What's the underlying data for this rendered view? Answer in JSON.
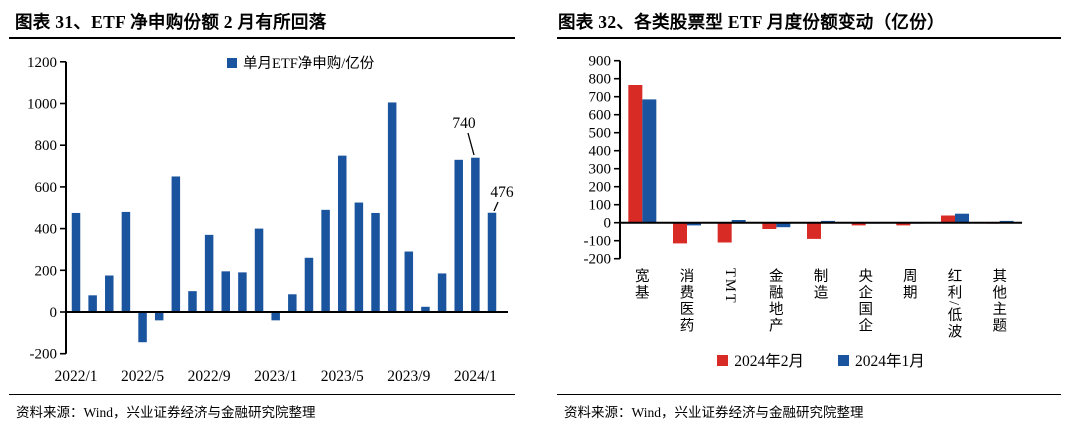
{
  "figures": [
    {
      "title": "图表 31、ETF 净申购份额 2 月有所回落",
      "source": "资料来源：Wind，兴业证券经济与金融研究院整理"
    },
    {
      "title": "图表 32、各类股票型 ETF 月度份额变动（亿份）",
      "source": "资料来源：Wind，兴业证券经济与金融研究院整理"
    }
  ],
  "colors": {
    "bar_blue": "#1A549E",
    "bar_red": "#D92B26",
    "axis": "#000000"
  },
  "chart_data": [
    {
      "type": "bar",
      "title": "ETF 净申购份额 2 月有所回落",
      "legend_label": "单月ETF净申购/亿份",
      "legend_position": "top",
      "unit": "亿份",
      "grid": false,
      "x": [
        "2022/1",
        "2022/2",
        "2022/3",
        "2022/4",
        "2022/5",
        "2022/6",
        "2022/7",
        "2022/8",
        "2022/9",
        "2022/10",
        "2022/11",
        "2022/12",
        "2023/1",
        "2023/2",
        "2023/3",
        "2023/4",
        "2023/5",
        "2023/6",
        "2023/7",
        "2023/8",
        "2023/9",
        "2023/10",
        "2023/11",
        "2023/12",
        "2024/1",
        "2024/2"
      ],
      "values": [
        475,
        80,
        175,
        480,
        -145,
        -40,
        650,
        100,
        370,
        195,
        190,
        400,
        -40,
        85,
        260,
        490,
        750,
        525,
        475,
        1005,
        290,
        25,
        185,
        730,
        740,
        476
      ],
      "xticks_shown": [
        "2022/1",
        "2022/5",
        "2022/9",
        "2023/1",
        "2023/5",
        "2023/9",
        "2024/1"
      ],
      "ylim": [
        -200,
        1200
      ],
      "ytick_step": 200,
      "bar_color": "#1A549E",
      "annotations": [
        {
          "x": "2024/1",
          "label": "740"
        },
        {
          "x": "2024/2",
          "label": "476"
        }
      ]
    },
    {
      "type": "bar",
      "title": "各类股票型 ETF 月度份额变动（亿份）",
      "legend_position": "bottom",
      "unit": "亿份",
      "grid": false,
      "categories": [
        "宽基",
        "消费医药",
        "TMT",
        "金融地产",
        "制造",
        "央企国企",
        "周期",
        "红利/低波",
        "其他主题"
      ],
      "series": [
        {
          "name": "2024年2月",
          "color": "#D92B26",
          "values": [
            765,
            -115,
            -110,
            -35,
            -90,
            -15,
            -15,
            40,
            -5
          ]
        },
        {
          "name": "2024年1月",
          "color": "#1A549E",
          "values": [
            685,
            -15,
            15,
            -25,
            10,
            -5,
            -5,
            50,
            10
          ]
        }
      ],
      "ylim": [
        -200,
        900
      ],
      "ytick_step": 100
    }
  ]
}
